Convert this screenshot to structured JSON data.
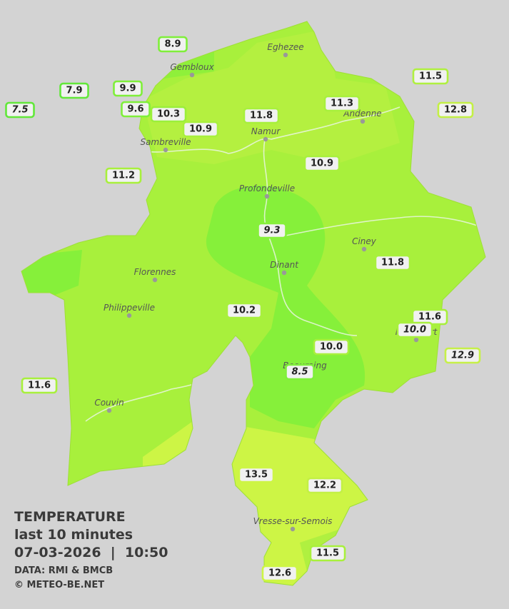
{
  "legend": {
    "title": "TEMPERATURE",
    "subtitle": "last 10 minutes",
    "timestamp": "07-03-2026  |  10:50",
    "source": "DATA: RMI & BMCB",
    "credit": "© METEO-BE.NET"
  },
  "cities": [
    "Eghezee",
    "Gembloux",
    "Andenne",
    "Namur",
    "Sambreville",
    "Profondeville",
    "Ciney",
    "Dinant",
    "Florennes",
    "Philippeville",
    "Rochefort",
    "Beauraing",
    "Couvin",
    "Vresse-sur-Semois"
  ],
  "stations": [
    {
      "value": "8.9"
    },
    {
      "value": "9.9"
    },
    {
      "value": "7.9"
    },
    {
      "value": "7.5",
      "italic": true
    },
    {
      "value": "9.6"
    },
    {
      "value": "10.3"
    },
    {
      "value": "10.9"
    },
    {
      "value": "11.8"
    },
    {
      "value": "11.3"
    },
    {
      "value": "11.5"
    },
    {
      "value": "12.8"
    },
    {
      "value": "11.2"
    },
    {
      "value": "10.9"
    },
    {
      "value": "9.3",
      "italic": true
    },
    {
      "value": "11.8"
    },
    {
      "value": "10.2"
    },
    {
      "value": "11.6"
    },
    {
      "value": "10.0",
      "italic": true
    },
    {
      "value": "10.0"
    },
    {
      "value": "12.9",
      "italic": true
    },
    {
      "value": "8.5",
      "italic": true
    },
    {
      "value": "11.6"
    },
    {
      "value": "13.5"
    },
    {
      "value": "12.2"
    },
    {
      "value": "11.5"
    },
    {
      "value": "12.6"
    }
  ]
}
